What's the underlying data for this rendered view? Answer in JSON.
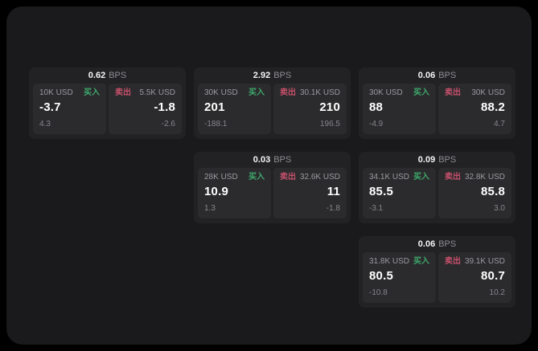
{
  "theme": {
    "page_background": "#000000",
    "surface_background": "#1a1a1c",
    "card_background": "#222224",
    "tile_background": "#2b2b2d",
    "buy_color": "#3ea96c",
    "sell_color": "#c7506c",
    "value_color": "#ffffff",
    "muted_text_color": "#8e8e93"
  },
  "labels": {
    "buy": "买入",
    "sell": "卖出",
    "bps": "BPS"
  },
  "cards": [
    {
      "bps": "0.62",
      "buy": {
        "notional": "10K USD",
        "price": "-3.7",
        "delta": "4.3"
      },
      "sell": {
        "notional": "5.5K USD",
        "price": "-1.8",
        "delta": "-2.6"
      }
    },
    {
      "bps": "2.92",
      "buy": {
        "notional": "30K USD",
        "price": "201",
        "delta": "-188.1"
      },
      "sell": {
        "notional": "30.1K USD",
        "price": "210",
        "delta": "196.5"
      }
    },
    {
      "bps": "0.06",
      "buy": {
        "notional": "30K USD",
        "price": "88",
        "delta": "-4.9"
      },
      "sell": {
        "notional": "30K USD",
        "price": "88.2",
        "delta": "4.7"
      }
    },
    {
      "bps": "0.03",
      "buy": {
        "notional": "28K USD",
        "price": "10.9",
        "delta": "1.3"
      },
      "sell": {
        "notional": "32.6K USD",
        "price": "11",
        "delta": "-1.8"
      }
    },
    {
      "bps": "0.09",
      "buy": {
        "notional": "34.1K USD",
        "price": "85.5",
        "delta": "-3.1"
      },
      "sell": {
        "notional": "32.8K USD",
        "price": "85.8",
        "delta": "3.0"
      }
    },
    {
      "bps": "0.06",
      "buy": {
        "notional": "31.8K USD",
        "price": "80.5",
        "delta": "-10.8"
      },
      "sell": {
        "notional": "39.1K USD",
        "price": "80.7",
        "delta": "10.2"
      }
    }
  ]
}
